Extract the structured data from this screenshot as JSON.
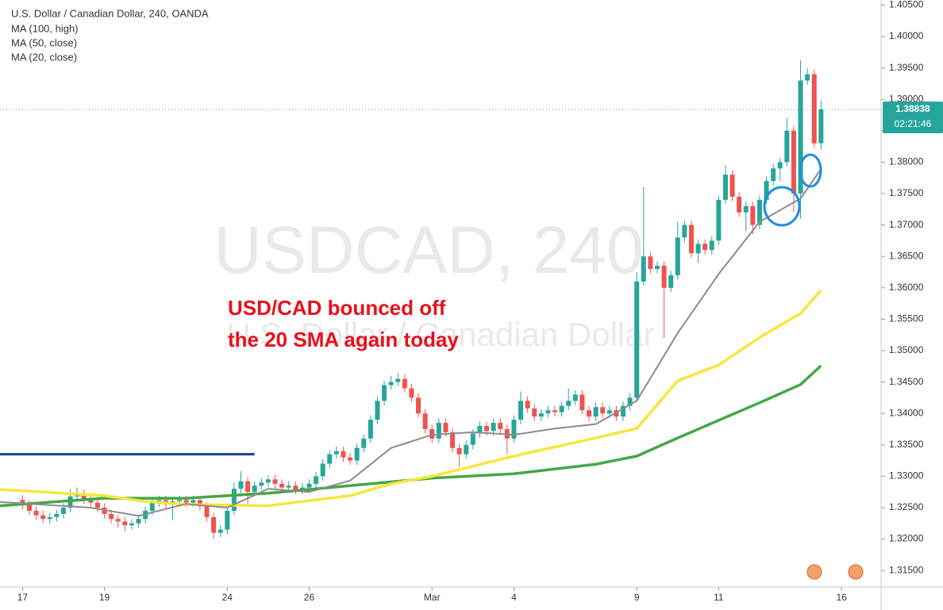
{
  "chart_data": {
    "type": "candlestick",
    "header": [
      "U.S. Dollar / Canadian Dollar, 240, OANDA"
    ],
    "watermark": [
      "USDCAD, 240",
      "U.S. Dollar / Canadian Dollar"
    ],
    "annotation": [
      "USD/CAD bounced off",
      "the 20 SMA again today"
    ],
    "annotation_color": "#e8101a",
    "up_color": "#26a69a",
    "down_color": "#ef5350",
    "open": [
      1.3262,
      1.3255,
      1.3245,
      1.3238,
      1.3232,
      1.3235,
      1.324,
      1.325,
      1.3268,
      1.3272,
      1.3262,
      1.3258,
      1.325,
      1.324,
      1.3232,
      1.3228,
      1.3222,
      1.3225,
      1.3232,
      1.3245,
      1.3258,
      1.3262,
      1.3255,
      1.326,
      1.3262,
      1.3258,
      1.3262,
      1.3252,
      1.3235,
      1.321,
      1.3215,
      1.3245,
      1.328,
      1.3292,
      1.3275,
      1.3285,
      1.329,
      1.3295,
      1.3288,
      1.3282,
      1.3285,
      1.3278,
      1.3282,
      1.3288,
      1.33,
      1.332,
      1.3335,
      1.334,
      1.333,
      1.3325,
      1.3345,
      1.336,
      1.339,
      1.342,
      1.3445,
      1.345,
      1.3455,
      1.344,
      1.3425,
      1.34,
      1.3375,
      1.336,
      1.3385,
      1.337,
      1.3345,
      1.3335,
      1.335,
      1.3368,
      1.338,
      1.3372,
      1.3385,
      1.3375,
      1.336,
      1.339,
      1.342,
      1.3408,
      1.3395,
      1.34,
      1.3405,
      1.3402,
      1.3412,
      1.342,
      1.343,
      1.3405,
      1.3395,
      1.341,
      1.34,
      1.3405,
      1.3395,
      1.3412,
      1.3425,
      1.361,
      1.365,
      1.363,
      1.3635,
      1.36,
      1.362,
      1.368,
      1.37,
      1.3655,
      1.367,
      1.366,
      1.3675,
      1.374,
      1.378,
      1.3745,
      1.372,
      1.373,
      1.37,
      1.374,
      1.377,
      1.379,
      1.38,
      1.385,
      1.375,
      1.393,
      1.394,
      1.383
    ],
    "high": [
      1.327,
      1.3262,
      1.3252,
      1.3245,
      1.3242,
      1.3247,
      1.3257,
      1.328,
      1.3282,
      1.3279,
      1.3269,
      1.3265,
      1.3257,
      1.3247,
      1.3239,
      1.3235,
      1.3232,
      1.3239,
      1.3252,
      1.3265,
      1.3269,
      1.3269,
      1.3267,
      1.3269,
      1.3269,
      1.3269,
      1.3269,
      1.3259,
      1.3242,
      1.3222,
      1.3252,
      1.329,
      1.3308,
      1.3299,
      1.3292,
      1.3297,
      1.3302,
      1.3302,
      1.3295,
      1.3292,
      1.3292,
      1.3289,
      1.3295,
      1.3307,
      1.3327,
      1.3342,
      1.3347,
      1.3347,
      1.3337,
      1.3352,
      1.3367,
      1.3397,
      1.3427,
      1.3452,
      1.346,
      1.3465,
      1.3462,
      1.3447,
      1.3432,
      1.3407,
      1.3382,
      1.3392,
      1.3392,
      1.3377,
      1.3352,
      1.3357,
      1.3375,
      1.3387,
      1.3387,
      1.3392,
      1.3392,
      1.3382,
      1.3397,
      1.3435,
      1.3427,
      1.3415,
      1.3407,
      1.3412,
      1.3412,
      1.3419,
      1.344,
      1.3437,
      1.3437,
      1.3412,
      1.3417,
      1.3417,
      1.3412,
      1.3412,
      1.3419,
      1.3432,
      1.3625,
      1.376,
      1.3657,
      1.3642,
      1.3642,
      1.3627,
      1.3705,
      1.3707,
      1.3707,
      1.3677,
      1.3677,
      1.3682,
      1.3747,
      1.3795,
      1.3787,
      1.3752,
      1.3737,
      1.3737,
      1.3747,
      1.3777,
      1.3797,
      1.3807,
      1.387,
      1.3857,
      1.3962,
      1.395,
      1.3947,
      1.3898
    ],
    "low": [
      1.3248,
      1.3238,
      1.3231,
      1.3225,
      1.3225,
      1.3228,
      1.3233,
      1.3243,
      1.3261,
      1.3255,
      1.3251,
      1.3243,
      1.3233,
      1.3225,
      1.3218,
      1.3212,
      1.3215,
      1.3218,
      1.3225,
      1.3238,
      1.3251,
      1.3248,
      1.323,
      1.3253,
      1.3251,
      1.3251,
      1.3245,
      1.3228,
      1.32,
      1.3203,
      1.3208,
      1.3238,
      1.3273,
      1.3255,
      1.3268,
      1.3278,
      1.3283,
      1.3281,
      1.3275,
      1.3275,
      1.3271,
      1.3271,
      1.3275,
      1.3281,
      1.3293,
      1.3313,
      1.3328,
      1.3323,
      1.3318,
      1.3318,
      1.3338,
      1.3353,
      1.3383,
      1.3413,
      1.3438,
      1.3443,
      1.3433,
      1.3418,
      1.3393,
      1.3368,
      1.3353,
      1.3353,
      1.3363,
      1.3338,
      1.3315,
      1.3328,
      1.3343,
      1.3361,
      1.3365,
      1.3365,
      1.3368,
      1.3335,
      1.3353,
      1.3383,
      1.3401,
      1.3388,
      1.3388,
      1.3393,
      1.3395,
      1.3395,
      1.3405,
      1.3413,
      1.3398,
      1.3388,
      1.3388,
      1.3393,
      1.3393,
      1.3388,
      1.3388,
      1.3405,
      1.3418,
      1.3603,
      1.3623,
      1.3623,
      1.352,
      1.3593,
      1.3613,
      1.3673,
      1.3648,
      1.364,
      1.3653,
      1.3653,
      1.3668,
      1.3733,
      1.3738,
      1.3713,
      1.369,
      1.3685,
      1.3693,
      1.3733,
      1.3763,
      1.377,
      1.3793,
      1.372,
      1.371,
      1.3923,
      1.3823,
      1.382
    ],
    "close": [
      1.3255,
      1.3245,
      1.3238,
      1.3232,
      1.3235,
      1.324,
      1.325,
      1.3268,
      1.3272,
      1.3262,
      1.3258,
      1.325,
      1.324,
      1.3232,
      1.3228,
      1.3222,
      1.3225,
      1.3232,
      1.3245,
      1.3258,
      1.3262,
      1.3255,
      1.326,
      1.3262,
      1.3258,
      1.3262,
      1.3252,
      1.3235,
      1.321,
      1.3215,
      1.3245,
      1.328,
      1.3292,
      1.3275,
      1.3285,
      1.329,
      1.3295,
      1.3288,
      1.3282,
      1.3285,
      1.3278,
      1.3282,
      1.3288,
      1.33,
      1.332,
      1.3335,
      1.334,
      1.333,
      1.3325,
      1.3345,
      1.336,
      1.339,
      1.342,
      1.3445,
      1.345,
      1.3455,
      1.344,
      1.3425,
      1.34,
      1.3375,
      1.336,
      1.3385,
      1.337,
      1.3345,
      1.3335,
      1.335,
      1.3368,
      1.338,
      1.3372,
      1.3385,
      1.3375,
      1.336,
      1.339,
      1.342,
      1.3408,
      1.3395,
      1.34,
      1.3405,
      1.3402,
      1.3412,
      1.342,
      1.343,
      1.3405,
      1.3395,
      1.341,
      1.34,
      1.3405,
      1.3395,
      1.3412,
      1.3425,
      1.361,
      1.365,
      1.363,
      1.3635,
      1.36,
      1.362,
      1.368,
      1.37,
      1.3655,
      1.367,
      1.366,
      1.3675,
      1.374,
      1.378,
      1.3745,
      1.372,
      1.373,
      1.37,
      1.374,
      1.377,
      1.379,
      1.38,
      1.385,
      1.375,
      1.393,
      1.394,
      1.383,
      1.3884
    ],
    "series": [
      {
        "name": "MA (100, high)",
        "color": "#43a846",
        "x": [
          -3.3,
          12,
          24,
          36,
          48,
          60,
          72,
          84,
          90,
          96,
          102,
          108,
          114,
          117
        ],
        "values": [
          1.3253,
          1.3265,
          1.3265,
          1.3273,
          1.3285,
          1.3297,
          1.3304,
          1.3319,
          1.3332,
          1.3361,
          1.3389,
          1.3417,
          1.3446,
          1.3476
        ]
      },
      {
        "name": "MA (50, close)",
        "color": "#f7e73c",
        "x": [
          -3.3,
          12,
          18,
          24,
          36,
          48,
          54,
          60,
          72,
          84,
          90,
          96,
          102,
          108,
          114,
          117
        ],
        "values": [
          1.3279,
          1.3269,
          1.326,
          1.3255,
          1.3253,
          1.3269,
          1.3288,
          1.33,
          1.3332,
          1.3361,
          1.3376,
          1.3452,
          1.3477,
          1.3521,
          1.3559,
          1.3596
        ]
      },
      {
        "name": "MA (20, close)",
        "color": "#8c8c8c",
        "x": [
          -3.3,
          10,
          17,
          24,
          30,
          36,
          42,
          48,
          54,
          60,
          66,
          72,
          78,
          84,
          90,
          96,
          102,
          108,
          114,
          117
        ],
        "values": [
          1.3259,
          1.325,
          1.3237,
          1.3256,
          1.325,
          1.328,
          1.3275,
          1.3293,
          1.3345,
          1.3366,
          1.337,
          1.3366,
          1.3376,
          1.3383,
          1.342,
          1.3528,
          1.3622,
          1.3705,
          1.3742,
          1.3789
        ]
      }
    ],
    "hline": {
      "value": 1.3335,
      "x": [
        -3.3,
        34
      ],
      "color": "#1c3f94"
    },
    "last_price": 1.38838,
    "countdown": "02:21:46",
    "xlim": [
      -3.3,
      125.8
    ],
    "xticks": [
      {
        "value": 0,
        "label": "17"
      },
      {
        "value": 12,
        "label": "19"
      },
      {
        "value": 30,
        "label": "24"
      },
      {
        "value": 42,
        "label": "26"
      },
      {
        "value": 60,
        "label": "Mar"
      },
      {
        "value": 72,
        "label": "4"
      },
      {
        "value": 90,
        "label": "9"
      },
      {
        "value": 102,
        "label": "11"
      },
      {
        "value": 120,
        "label": "16"
      }
    ],
    "ylim": [
      1.31237,
      1.40581
    ],
    "yticks": [
      {
        "value": 1.315,
        "label": "1.31500"
      },
      {
        "value": 1.32,
        "label": "1.32000"
      },
      {
        "value": 1.325,
        "label": "1.32500"
      },
      {
        "value": 1.33,
        "label": "1.33000"
      },
      {
        "value": 1.335,
        "label": "1.33500"
      },
      {
        "value": 1.34,
        "label": "1.34000"
      },
      {
        "value": 1.345,
        "label": "1.34500"
      },
      {
        "value": 1.35,
        "label": "1.35000"
      },
      {
        "value": 1.355,
        "label": "1.35500"
      },
      {
        "value": 1.36,
        "label": "1.36000"
      },
      {
        "value": 1.365,
        "label": "1.36500"
      },
      {
        "value": 1.37,
        "label": "1.37000"
      },
      {
        "value": 1.375,
        "label": "1.37500"
      },
      {
        "value": 1.38,
        "label": "1.38000"
      },
      {
        "value": 1.385,
        "label": "1.38500"
      },
      {
        "value": 1.39,
        "label": "1.39000"
      },
      {
        "value": 1.395,
        "label": "1.39500"
      },
      {
        "value": 1.4,
        "label": "1.40000"
      },
      {
        "value": 1.405,
        "label": "1.40500"
      }
    ]
  }
}
